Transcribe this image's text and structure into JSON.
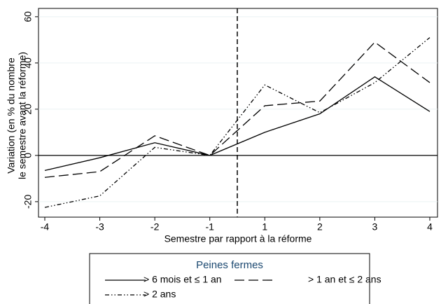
{
  "chart_data": {
    "type": "line",
    "ylabel": [
      "Variation (en % du nombre",
      "le semestre avant la réforme)"
    ],
    "xlabel": "Semestre par rapport à la réforme",
    "categories": [
      "-4",
      "-3",
      "-2",
      "-1",
      "1",
      "2",
      "3",
      "4"
    ],
    "series": [
      {
        "name": "> 6 mois et ≤ 1 an",
        "color": "#000000",
        "dash": "none",
        "values": [
          -6.5,
          -1,
          5.5,
          0,
          10,
          18,
          34,
          19
        ]
      },
      {
        "name": "> 1 an et ≤ 2 ans",
        "color": "#000000",
        "dash": "14,6",
        "values": [
          -9.5,
          -7,
          8.5,
          0,
          21.5,
          23.5,
          49,
          31.5
        ]
      },
      {
        "name": "> 2 ans",
        "color": "#000000",
        "dash": "6,3,1.5,3,1.5,3",
        "values": [
          -22.5,
          -17.5,
          3.5,
          0,
          30.5,
          18.5,
          31.5,
          51
        ]
      }
    ],
    "ylim": [
      -26.7,
      63.6
    ],
    "yticks": [
      -20,
      0,
      20,
      40,
      60
    ],
    "grid": true,
    "legend": {
      "title": "Peines fermes",
      "position": "bottom"
    }
  }
}
